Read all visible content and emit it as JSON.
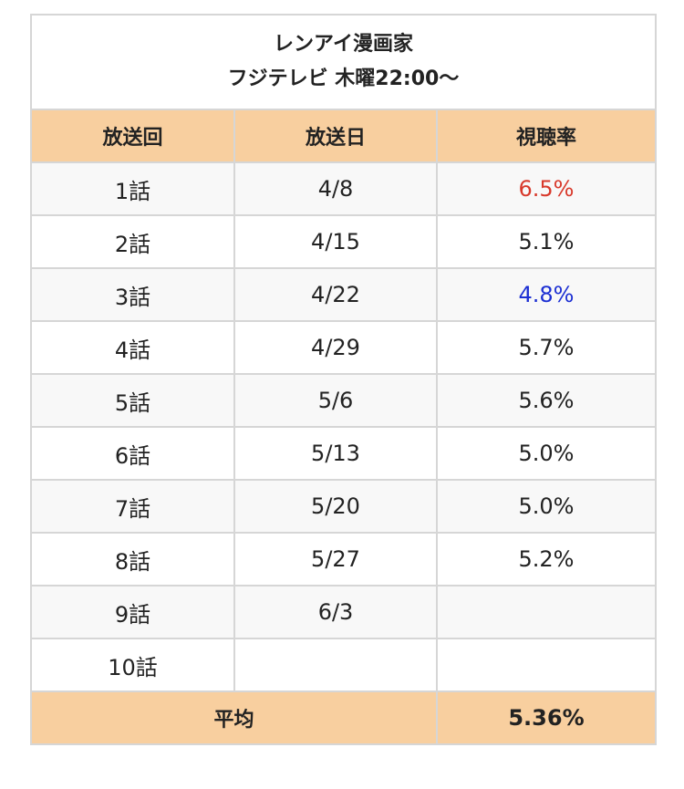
{
  "table": {
    "title": [
      "レンアイ漫画家",
      "フジテレビ 木曜22:00〜"
    ],
    "headers": [
      "放送回",
      "放送日",
      "視聴率"
    ],
    "rows": [
      {
        "episode": "1話",
        "date": "4/8",
        "rating": "6.5%",
        "color": "#d8392b"
      },
      {
        "episode": "2話",
        "date": "4/15",
        "rating": "5.1%"
      },
      {
        "episode": "3話",
        "date": "4/22",
        "rating": "4.8%",
        "color": "#1c2fd3"
      },
      {
        "episode": "4話",
        "date": "4/29",
        "rating": "5.7%"
      },
      {
        "episode": "5話",
        "date": "5/6",
        "rating": "5.6%"
      },
      {
        "episode": "6話",
        "date": "5/13",
        "rating": "5.0%"
      },
      {
        "episode": "7話",
        "date": "5/20",
        "rating": "5.0%"
      },
      {
        "episode": "8話",
        "date": "5/27",
        "rating": "5.2%"
      },
      {
        "episode": "9話",
        "date": "6/3",
        "rating": null
      },
      {
        "episode": "10話",
        "date": null,
        "rating": null
      }
    ],
    "footer": {
      "label": "平均",
      "value": "5.36%"
    }
  }
}
